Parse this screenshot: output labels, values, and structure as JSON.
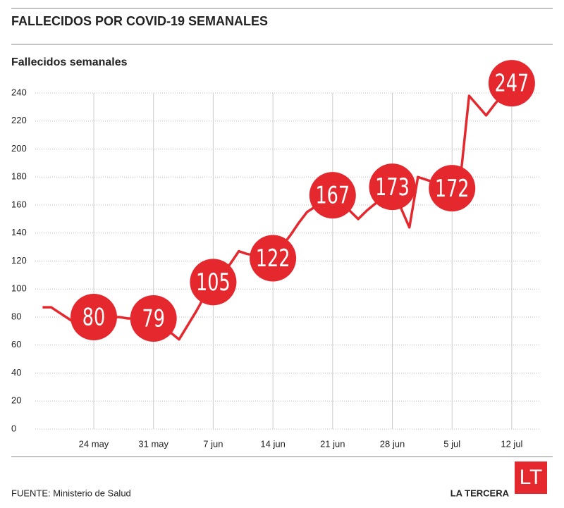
{
  "chart_data": {
    "type": "line",
    "title": "FALLECIDOS POR COVID-19 SEMANALES",
    "y_label": "Fallecidos semanales",
    "source": "FUENTE: Ministerio de Salud",
    "brand": "LA TERCERA",
    "logo": "LT",
    "categories": [
      null,
      null,
      null,
      null,
      null,
      null,
      "24 may",
      null,
      null,
      null,
      null,
      null,
      null,
      "31 may",
      null,
      null,
      null,
      null,
      null,
      null,
      "7 jun",
      null,
      null,
      null,
      null,
      null,
      null,
      "14 jun",
      null,
      null,
      null,
      null,
      null,
      null,
      "21 jun",
      null,
      null,
      null,
      null,
      null,
      null,
      "28 jun",
      null,
      null,
      null,
      null,
      null,
      null,
      "5 jul",
      null,
      null,
      null,
      null,
      null,
      null,
      "12 jul"
    ],
    "values": [
      87,
      87,
      83,
      79,
      75,
      78,
      80,
      80,
      80,
      80,
      79,
      79,
      79,
      79,
      74,
      69,
      64,
      74,
      84,
      95,
      105,
      110,
      118,
      127,
      125,
      124,
      123,
      122,
      130,
      138,
      147,
      155,
      159,
      163,
      167,
      161,
      156,
      150,
      156,
      161,
      167,
      173,
      158,
      144,
      180,
      178,
      176,
      174,
      172,
      180,
      238,
      231,
      224,
      232,
      239,
      247
    ],
    "value_labels": [
      null,
      null,
      null,
      null,
      null,
      null,
      "80",
      null,
      null,
      null,
      null,
      null,
      null,
      "79",
      null,
      null,
      null,
      null,
      null,
      null,
      "105",
      null,
      null,
      null,
      null,
      null,
      null,
      "122",
      null,
      null,
      null,
      null,
      null,
      null,
      "167",
      null,
      null,
      null,
      null,
      null,
      null,
      "173",
      null,
      null,
      null,
      null,
      null,
      null,
      "172",
      null,
      null,
      null,
      null,
      null,
      null,
      "247"
    ],
    "color": "#e5282e",
    "ylim": [
      0,
      240
    ],
    "yticks": [
      0,
      20,
      40,
      60,
      80,
      100,
      120,
      140,
      160,
      180,
      200,
      220,
      240
    ],
    "grid": true
  }
}
